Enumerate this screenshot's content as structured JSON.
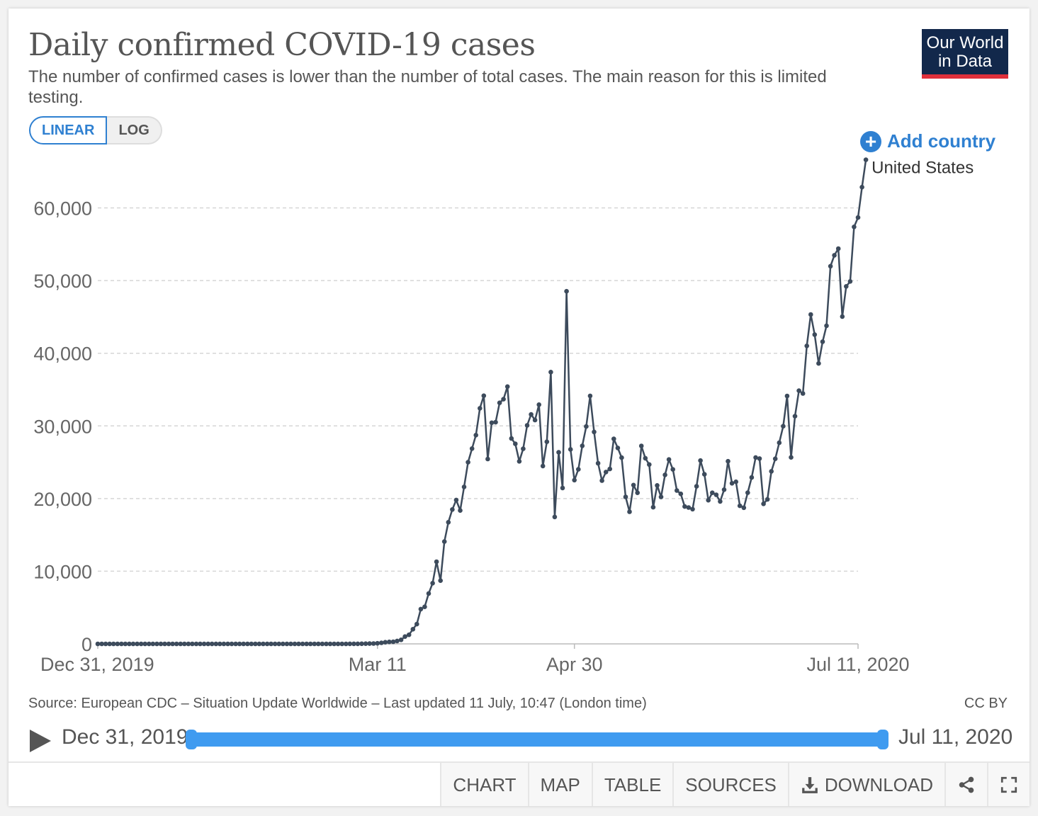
{
  "header": {
    "title": "Daily confirmed COVID-19 cases",
    "subtitle": "The number of confirmed cases is lower than the number of total cases. The main reason for this is limited testing.",
    "logo_line1": "Our World",
    "logo_line2": "in Data"
  },
  "controls": {
    "linear_label": "LINEAR",
    "log_label": "LOG",
    "selected_scale": "LINEAR",
    "add_country_label": "Add country",
    "add_icon": "plus-circle-icon"
  },
  "chart_data": {
    "type": "line",
    "title": "Daily confirmed COVID-19 cases",
    "x_start": "2019-12-31",
    "x_end": "2020-07-11",
    "xlim": [
      "2019-12-31",
      "2020-07-11"
    ],
    "x_ticks": [
      {
        "date": "2019-12-31",
        "label": "Dec 31, 2019"
      },
      {
        "date": "2020-03-11",
        "label": "Mar 11"
      },
      {
        "date": "2020-04-30",
        "label": "Apr 30"
      },
      {
        "date": "2020-07-11",
        "label": "Jul 11, 2020"
      }
    ],
    "y_ticks": [
      0,
      10000,
      20000,
      30000,
      40000,
      50000,
      60000
    ],
    "y_tick_labels": [
      "0",
      "10,000",
      "20,000",
      "30,000",
      "40,000",
      "50,000",
      "60,000"
    ],
    "ylim": [
      0,
      66000
    ],
    "grid": true,
    "series": [
      {
        "name": "United States",
        "color": "#3d4b5c",
        "values": [
          0,
          0,
          0,
          0,
          0,
          0,
          0,
          0,
          0,
          0,
          0,
          0,
          0,
          0,
          0,
          0,
          0,
          0,
          0,
          0,
          0,
          1,
          0,
          1,
          0,
          0,
          0,
          0,
          0,
          0,
          0,
          1,
          0,
          0,
          0,
          0,
          0,
          0,
          0,
          0,
          0,
          0,
          0,
          0,
          0,
          0,
          0,
          0,
          0,
          0,
          0,
          0,
          0,
          0,
          0,
          0,
          0,
          0,
          0,
          0,
          0,
          2,
          1,
          3,
          5,
          8,
          11,
          19,
          25,
          37,
          52,
          78,
          150,
          225,
          274,
          295,
          400,
          552,
          1008,
          1247,
          2014,
          2719,
          4787,
          5098,
          6932,
          8352,
          11308,
          8703,
          14076,
          16734,
          18491,
          19798,
          18361,
          21599,
          24993,
          26877,
          28729,
          32423,
          34148,
          25441,
          30433,
          30507,
          33173,
          33668,
          35406,
          28269,
          27539,
          25124,
          26852,
          30075,
          31577,
          30804,
          32922,
          24479,
          27817,
          37402,
          17470,
          26358,
          21460,
          48529,
          26766,
          22538,
          24023,
          27262,
          29917,
          34130,
          29169,
          24863,
          22474,
          23651,
          24071,
          28213,
          26962,
          25631,
          20230,
          18180,
          21861,
          20798,
          27253,
          25555,
          24687,
          18802,
          21807,
          20219,
          23264,
          25379,
          24013,
          21104,
          20646,
          18906,
          18768,
          18538,
          21695,
          25227,
          23341,
          19768,
          20791,
          20518,
          19608,
          21227,
          25131,
          22101,
          22306,
          19001,
          18734,
          20801,
          22907,
          25646,
          25500,
          19271,
          19889,
          23747,
          25469,
          27685,
          29963,
          34118,
          25670,
          31331,
          34844,
          34459,
          41016,
          45328,
          42564,
          38598,
          41586,
          43783,
          51984,
          53483,
          54394,
          45047,
          49207,
          49889,
          57394,
          58674,
          62858,
          66627
        ]
      }
    ]
  },
  "source": {
    "text": "Source: European CDC – Situation Update Worldwide – Last updated 11 July, 10:47 (London time)",
    "license": "CC BY"
  },
  "timeline": {
    "start_label": "Dec 31, 2019",
    "end_label": "Jul 11, 2020",
    "start_fraction": 0,
    "end_fraction": 1,
    "play_icon": "play-icon"
  },
  "tabs": [
    {
      "label": "CHART",
      "active": true
    },
    {
      "label": "MAP"
    },
    {
      "label": "TABLE"
    },
    {
      "label": "SOURCES"
    },
    {
      "label": "DOWNLOAD",
      "icon": "download-icon"
    },
    {
      "label": "",
      "icon": "share-icon"
    },
    {
      "label": "",
      "icon": "fullscreen-icon"
    }
  ],
  "colors": {
    "accent": "#2f80d1",
    "line": "#3d4b5c",
    "logo_bg": "#12284b",
    "logo_bar": "#e0303b",
    "timeline": "#3f9bf0"
  }
}
